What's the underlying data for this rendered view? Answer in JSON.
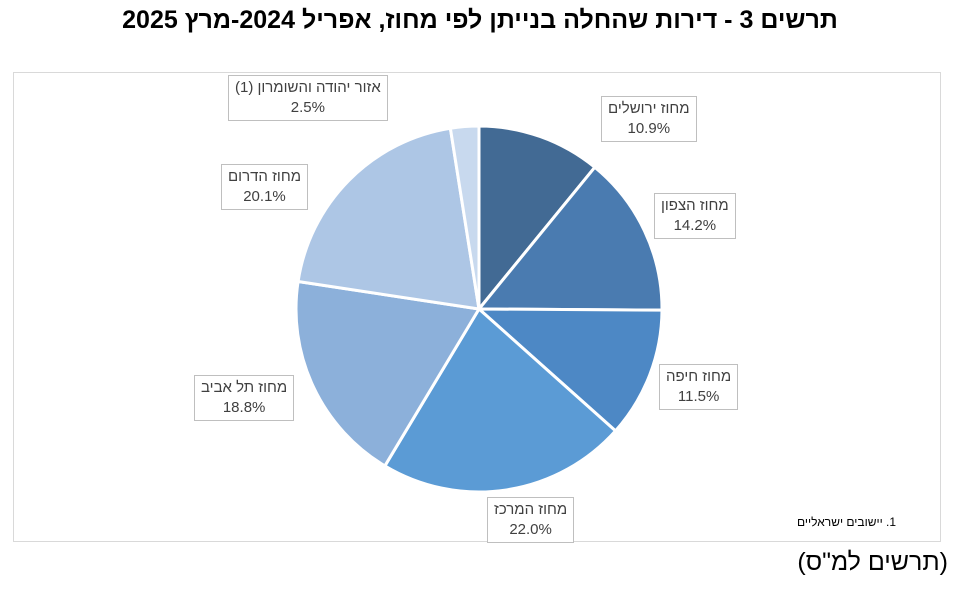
{
  "chart_data": {
    "type": "pie",
    "title": "תרשים 3 - דירות שהחלה בנייתן לפי מחוז, אפריל 2024-מרץ 2025",
    "slices": [
      {
        "label": "מחוז ירושלים",
        "value": 10.9,
        "value_label": "10.9%",
        "color": "#426a94"
      },
      {
        "label": "מחוז הצפון",
        "value": 14.2,
        "value_label": "14.2%",
        "color": "#4a7bb0"
      },
      {
        "label": "מחוז חיפה",
        "value": 11.5,
        "value_label": "11.5%",
        "color": "#4d88c5"
      },
      {
        "label": "מחוז המרכז",
        "value": 22.0,
        "value_label": "22.0%",
        "color": "#5b9bd5"
      },
      {
        "label": "מחוז תל אביב",
        "value": 18.8,
        "value_label": "18.8%",
        "color": "#8cb0da"
      },
      {
        "label": "מחוז הדרום",
        "value": 20.1,
        "value_label": "20.1%",
        "color": "#adc6e5"
      },
      {
        "label": "אזור יהודה והשומרון (1)",
        "value": 2.5,
        "value_label": "2.5%",
        "color": "#c8d9ee"
      }
    ],
    "footnote": "1. יישובים ישראליים"
  },
  "source": "(תרשים למ\"ס)"
}
